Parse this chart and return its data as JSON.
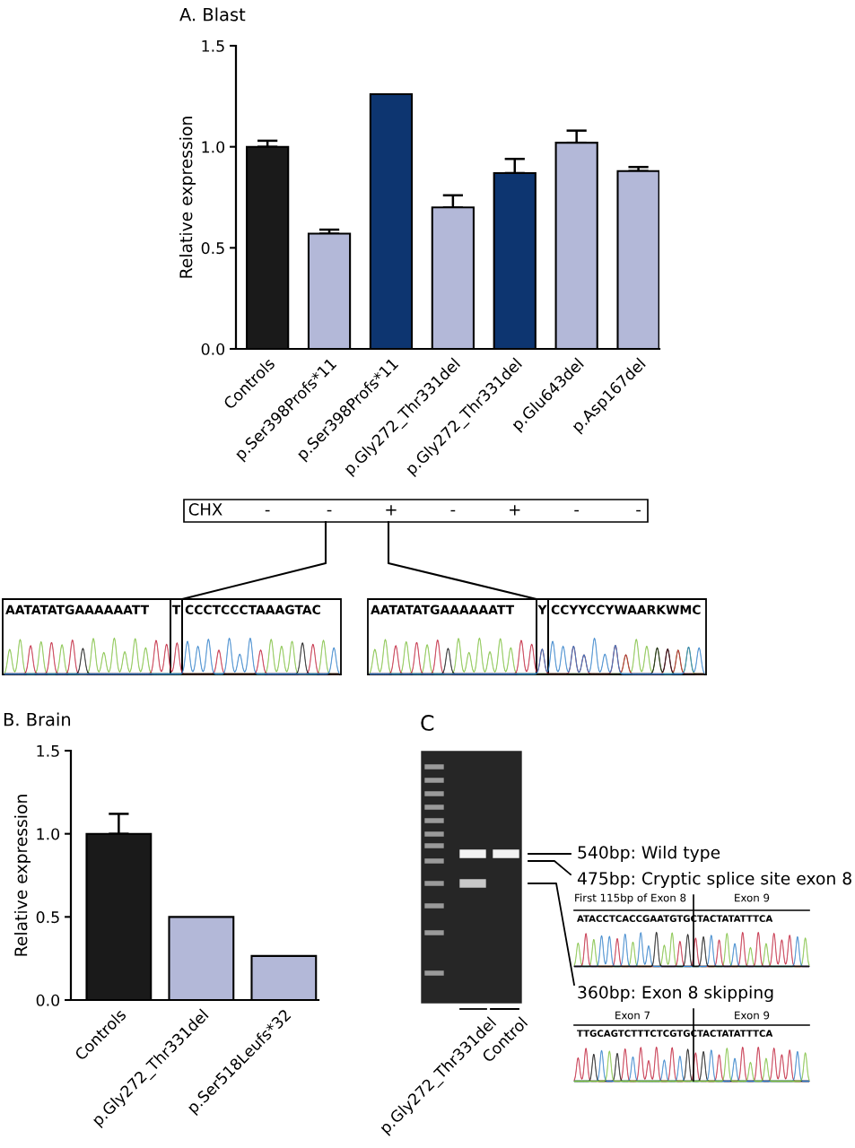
{
  "chart_data": [
    {
      "type": "bar",
      "title": "A. Blast",
      "ylabel": "Relative expression",
      "categories": [
        "Controls",
        "p.Ser398Profs*11",
        "p.Ser398Profs*11",
        "p.Gly272_Thr331del",
        "p.Gly272_Thr331del",
        "p.Glu643del",
        "p.Asp167del"
      ],
      "values": [
        1.0,
        0.57,
        1.26,
        0.7,
        0.87,
        1.02,
        0.88
      ],
      "colors": [
        "#1a1a1a",
        "#b3b8d8",
        "#0d3570",
        "#b3b8d8",
        "#0d3570",
        "#b3b8d8",
        "#b3b8d8"
      ],
      "errors": [
        [
          1.0,
          1.03
        ],
        [
          0.57,
          0.59
        ],
        null,
        [
          0.7,
          0.76
        ],
        [
          0.87,
          0.94
        ],
        [
          1.02,
          1.08
        ],
        [
          0.88,
          0.9
        ]
      ],
      "ylim": [
        0,
        1.5
      ],
      "yticks": [
        {
          "value": 0,
          "label": "0.0"
        },
        {
          "value": 0.5,
          "label": "0.5"
        },
        {
          "value": 1,
          "label": "1.0"
        },
        {
          "value": 1.5,
          "label": "1.5"
        }
      ],
      "annotations": [
        "CHX",
        "-",
        "-",
        "+",
        "-",
        "+",
        "-",
        "-"
      ]
    },
    {
      "type": "other",
      "annotations": [
        "AATATATGAAAAAATT",
        "T",
        "CCCTCCCTAAAGTAC",
        "AATATATGAAAAAATT",
        "Y",
        "CCYYCCYWAARKWMC"
      ]
    },
    {
      "type": "bar",
      "title": "B. Brain",
      "ylabel": "Relative expression",
      "categories": [
        "Controls",
        "p.Gly272_Thr331del",
        "p.Ser518Leufs*32"
      ],
      "values": [
        1.0,
        0.5,
        0.265
      ],
      "colors": [
        "#1a1a1a",
        "#b3b8d8",
        "#b3b8d8"
      ],
      "errors": [
        [
          1.0,
          1.12
        ],
        null,
        null
      ],
      "ylim": [
        0,
        1.5
      ],
      "yticks": [
        {
          "value": 0,
          "label": "0.0"
        },
        {
          "value": 0.5,
          "label": "0.5"
        },
        {
          "value": 1,
          "label": "1.0"
        },
        {
          "value": 1.5,
          "label": "1.5"
        }
      ]
    },
    {
      "type": "other",
      "title": "C",
      "annotations": [
        "540bp: Wild type",
        "475bp: Cryptic splice site exon 8",
        "First 115bp of Exon 8",
        "Exon 9",
        "ATACCTCACCGAATGTGCTACTATATTTCA",
        "360bp: Exon 8 skipping",
        "Exon 7",
        "Exon 9",
        "TTGCAGTCTTTCTCGTGCTACTATATTTCA",
        "p.Gly272_Thr331del",
        "Control"
      ]
    }
  ]
}
